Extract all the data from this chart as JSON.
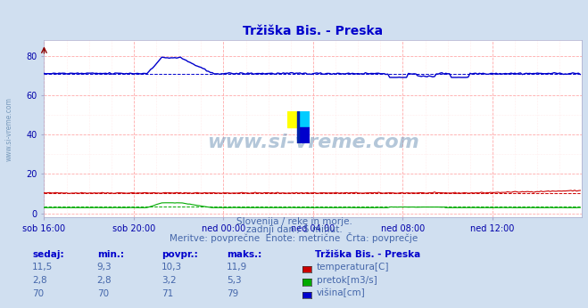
{
  "title": "Tržiška Bis. - Preska",
  "subtitle1": "Slovenija / reke in morje.",
  "subtitle2": "zadnji dan / 5 minut.",
  "subtitle3": "Meritve: povprečne  Enote: metrične  Črta: povprečje",
  "watermark": "www.si-vreme.com",
  "xlabel_ticks": [
    "sob 16:00",
    "sob 20:00",
    "ned 00:00",
    "ned 04:00",
    "ned 08:00",
    "ned 12:00"
  ],
  "ylabel_ticks": [
    0,
    20,
    40,
    60,
    80
  ],
  "ylim": [
    -2,
    88
  ],
  "xlim": [
    0,
    288
  ],
  "n_points": 288,
  "bg_color": "#d0dff0",
  "plot_bg_color": "#ffffff",
  "grid_color_major": "#ffaaaa",
  "grid_color_minor": "#ffdddd",
  "title_color": "#0000cc",
  "label_color": "#0000aa",
  "text_color": "#4466aa",
  "legend_header_color": "#0000cc",
  "temp_color": "#cc0000",
  "pretok_color": "#00aa00",
  "visina_color": "#0000cc",
  "temp_avg": 10.3,
  "pretok_avg": 3.2,
  "visina_avg": 71,
  "temp_min": 9.3,
  "pretok_min": 2.8,
  "visina_min": 70,
  "temp_max": 11.9,
  "pretok_max": 5.3,
  "visina_max": 79,
  "table_headers": [
    "sedaj:",
    "min.:",
    "povpr.:",
    "maks.:"
  ],
  "table_col1": [
    "11,5",
    "2,8",
    "70"
  ],
  "table_col2": [
    "9,3",
    "2,8",
    "70"
  ],
  "table_col3": [
    "10,3",
    "3,2",
    "71"
  ],
  "table_col4": [
    "11,9",
    "5,3",
    "79"
  ],
  "table_labels": [
    "temperatura[C]",
    "pretok[m3/s]",
    "višina[cm]"
  ],
  "legend_title": "Tržiška Bis. - Preska"
}
